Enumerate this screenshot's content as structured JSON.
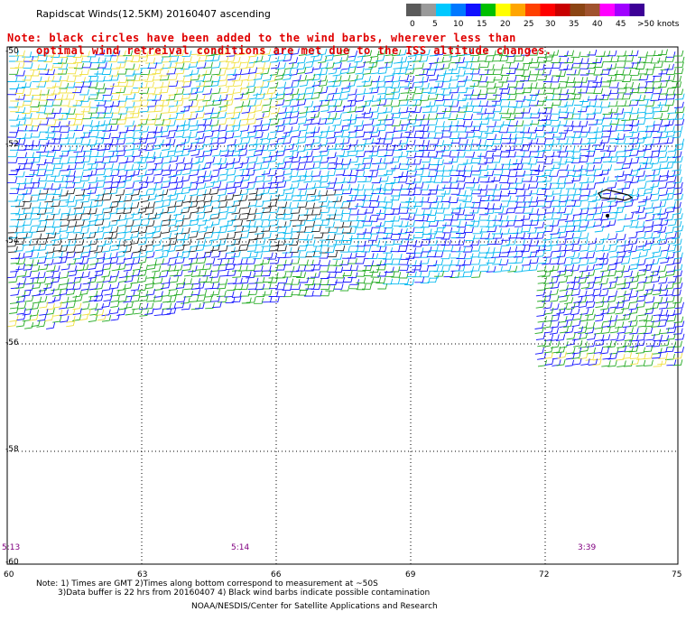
{
  "title": "Rapidscat Winds(12.5KM) 20160407 ascending",
  "note": {
    "line1": "Note: black circles have been added to the wind barbs, wherever less than",
    "line2": "optimal wind retreival conditions are met due to the ISS altitude changes."
  },
  "colorbar": {
    "labels": [
      "0",
      "5",
      "10",
      "15",
      "20",
      "25",
      "30",
      "35",
      "40",
      "45",
      ">50 knots"
    ],
    "colors": [
      "#5a5a5a",
      "#9a9a9a",
      "#00c8ff",
      "#0078ff",
      "#1010ff",
      "#00c000",
      "#ffff00",
      "#ffa500",
      "#ff4000",
      "#ff0000",
      "#c80000",
      "#8b4513",
      "#a0522d",
      "#ff00ff",
      "#a000ff",
      "#3c0096"
    ]
  },
  "axes": {
    "lat_labels": [
      "-50",
      "-52",
      "-54",
      "-56",
      "-58",
      "-60"
    ],
    "lon_labels": [
      "60",
      "63",
      "66",
      "69",
      "72",
      "75"
    ]
  },
  "times": [
    "5:13",
    "5:14",
    "3:39"
  ],
  "footer": {
    "line1": "Note: 1) Times are GMT 2)Times along bottom correspond to measurement at ~50S",
    "line2": "3)Data buffer is 22 hrs from 20160407 4) Black wind barbs indicate possible contamination",
    "line3": "NOAA/NESDIS/Center for Satellite Applications and Research"
  }
}
